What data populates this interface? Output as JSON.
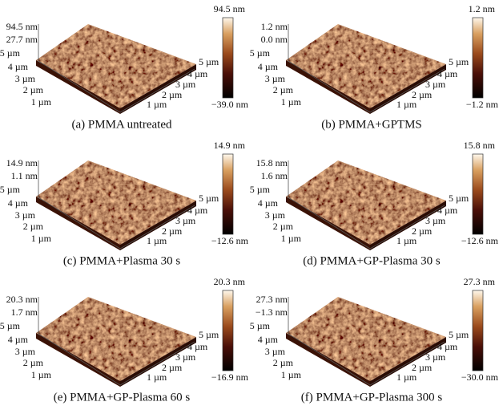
{
  "panels": [
    {
      "caption": "(a) PMMA untreated",
      "z_top": "94.5 nm",
      "z_mid": "27.7 nm",
      "bar_max": "94.5 nm",
      "bar_min": "−39.0 nm"
    },
    {
      "caption": "(b) PMMA+GPTMS",
      "z_top": "1.2 nm",
      "z_mid": "0.0 nm",
      "bar_max": "1.2 nm",
      "bar_min": "−1.2 nm"
    },
    {
      "caption": "(c) PMMA+Plasma 30 s",
      "z_top": "14.9 nm",
      "z_mid": "1.1 nm",
      "bar_max": "14.9 nm",
      "bar_min": "−12.6 nm"
    },
    {
      "caption": "(d) PMMA+GP-Plasma 30 s",
      "z_top": "15.8 nm",
      "z_mid": "1.6 nm",
      "bar_max": "15.8 nm",
      "bar_min": "−12.6 nm"
    },
    {
      "caption": "(e) PMMA+GP-Plasma 60 s",
      "z_top": "20.3 nm",
      "z_mid": "1.7 nm",
      "bar_max": "20.3 nm",
      "bar_min": "−16.9 nm"
    },
    {
      "caption": "(f) PMMA+GP-Plasma 300 s",
      "z_top": "27.3 nm",
      "z_mid": "−1.3 nm",
      "bar_max": "27.3 nm",
      "bar_min": "−30.0 nm"
    }
  ],
  "axis_labels": [
    "5 µm",
    "4 µm",
    "3 µm",
    "2 µm",
    "1 µm"
  ]
}
